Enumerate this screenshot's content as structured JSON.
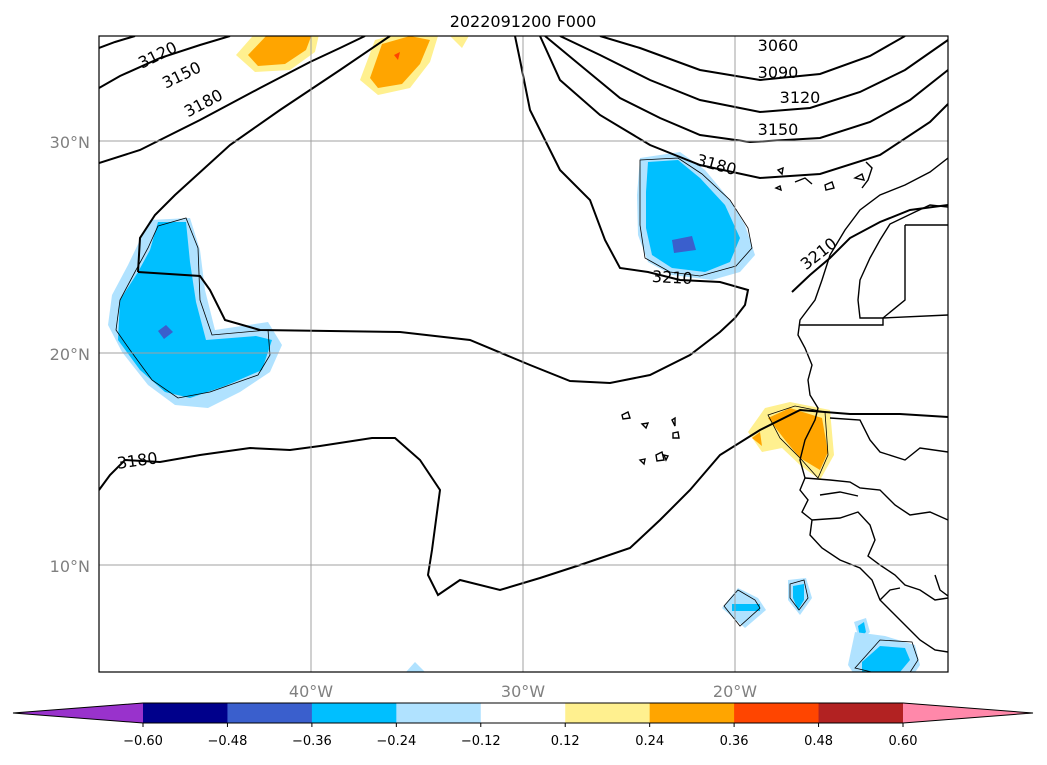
{
  "map": {
    "title": "2022091200 F000",
    "lat_labels": [
      "30°N",
      "20°N",
      "10°N"
    ],
    "lon_labels": [
      "40°W",
      "30°W",
      "20°W"
    ],
    "contour_labels": [
      "3120",
      "3150",
      "3180",
      "3060",
      "3090",
      "3120",
      "3150",
      "3180",
      "3210",
      "3210",
      "3180"
    ]
  },
  "colorbar": {
    "ticks": [
      "−0.60",
      "−0.48",
      "−0.36",
      "−0.24",
      "−0.12",
      "0.12",
      "0.24",
      "0.36",
      "0.48",
      "0.60"
    ],
    "colors": [
      "#9932cc",
      "#00008b",
      "#3a5fcd",
      "#00bfff",
      "#b0e2ff",
      "#ffffff",
      "#fff08f",
      "#ffa500",
      "#ff4500",
      "#b22222",
      "#ff88aa"
    ]
  }
}
